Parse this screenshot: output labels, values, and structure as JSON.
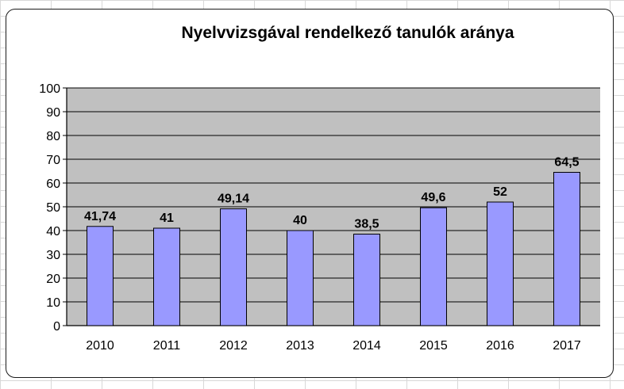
{
  "chart_data": {
    "type": "bar",
    "title": "Nyelvvizsgával rendelkező tanulók aránya",
    "categories": [
      "2010",
      "2011",
      "2012",
      "2013",
      "2014",
      "2015",
      "2016",
      "2017"
    ],
    "values": [
      41.74,
      41,
      49.14,
      40,
      38.5,
      49.6,
      52,
      64.5
    ],
    "data_labels": [
      "41,74",
      "41",
      "49,14",
      "40",
      "38,5",
      "49,6",
      "52",
      "64,5"
    ],
    "y_ticks": [
      "0",
      "10",
      "20",
      "30",
      "40",
      "50",
      "60",
      "70",
      "80",
      "90",
      "100"
    ],
    "ylim": [
      0,
      100
    ],
    "grid": true,
    "legend": "none",
    "colors": {
      "bar_fill": "#9999ff",
      "bar_stroke": "#000000",
      "plot_background": "#c0c0c0",
      "frame_border": "#1a1a1a"
    }
  }
}
